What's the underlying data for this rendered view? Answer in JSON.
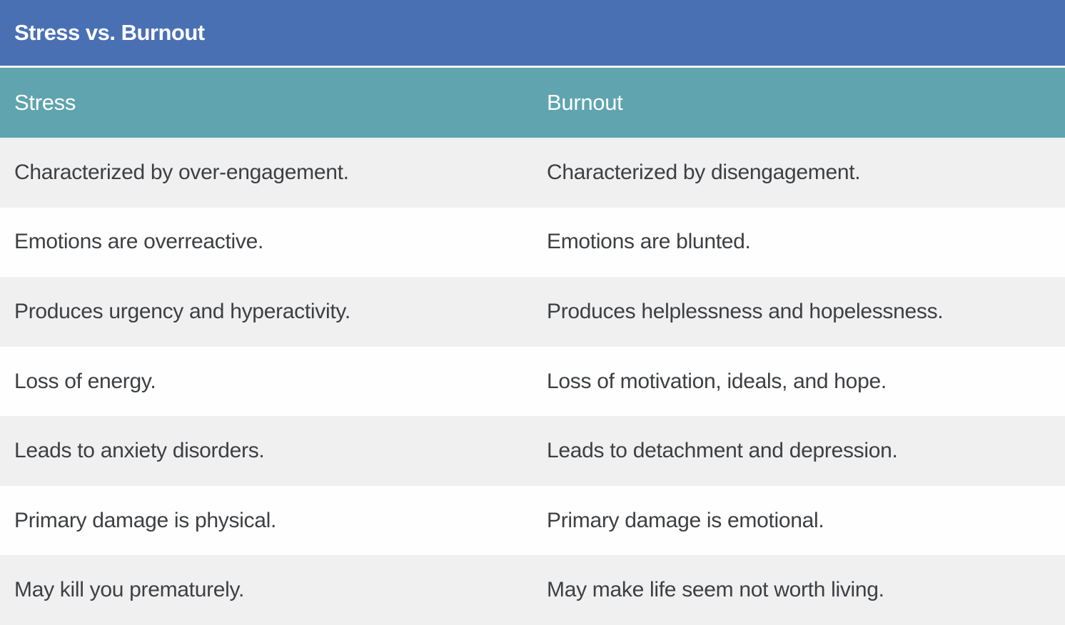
{
  "table": {
    "title": "Stress vs. Burnout",
    "columns": [
      {
        "label": "Stress"
      },
      {
        "label": "Burnout"
      }
    ],
    "rows": [
      [
        "Characterized by over-engagement.",
        "Characterized by disengagement."
      ],
      [
        "Emotions are overreactive.",
        "Emotions are blunted."
      ],
      [
        "Produces urgency and hyperactivity.",
        "Produces helplessness and hopelessness."
      ],
      [
        "Loss of energy.",
        "Loss of motivation, ideals, and hope."
      ],
      [
        "Leads to anxiety disorders.",
        "Leads to detachment and depression."
      ],
      [
        "Primary damage is physical.",
        "Primary damage is emotional."
      ],
      [
        "May kill you prematurely.",
        "May make life seem not worth living."
      ]
    ],
    "colors": {
      "title_bar_bg": "#4a70b4",
      "header_row_bg": "#5fa4af",
      "row_alt_bg": "#f0f0f1",
      "row_bg": "#fefefe",
      "header_text": "#ffffff",
      "cell_text": "#3d3f42",
      "separator": "#f2f4f6"
    }
  }
}
